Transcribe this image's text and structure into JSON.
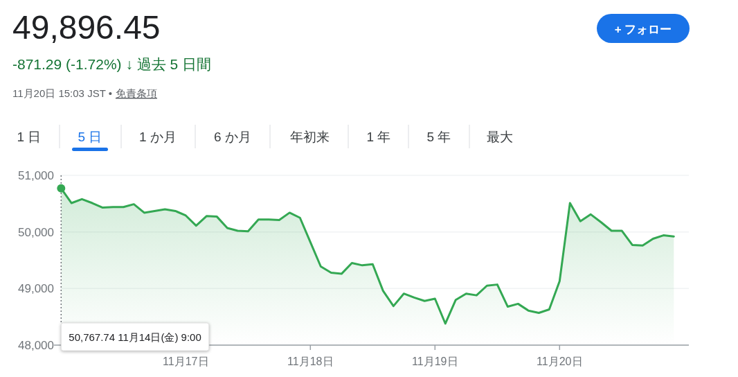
{
  "chart_data": {
    "type": "area",
    "title": "49,896.45",
    "subtitle": "-871.29 (-1.72%) ↓ 過去 5 日間",
    "annotations": [
      "11月20日 15:03 JST •",
      "免責条項",
      "1 日",
      "5 日",
      "1 か月",
      "6 か月",
      "年初来",
      "1 年",
      "5 年",
      "最大",
      "+ フォロー",
      "50,767.74  11月14日(金) 9:00"
    ],
    "categories": [
      null,
      null,
      null,
      null,
      null,
      null,
      null,
      null,
      null,
      null,
      null,
      null,
      "11月17日",
      null,
      null,
      null,
      null,
      null,
      null,
      null,
      null,
      null,
      null,
      null,
      "11月18日",
      null,
      null,
      null,
      null,
      null,
      null,
      null,
      null,
      null,
      null,
      null,
      "11月19日",
      null,
      null,
      null,
      null,
      null,
      null,
      null,
      null,
      null,
      null,
      null,
      "11月20日",
      null,
      null,
      null,
      null,
      null,
      null,
      null,
      null,
      null,
      null,
      null
    ],
    "values": [
      50770,
      50510,
      50580,
      50510,
      50430,
      50440,
      50440,
      50490,
      50340,
      50370,
      50400,
      50370,
      50290,
      50110,
      50280,
      50270,
      50070,
      50020,
      50010,
      50220,
      50220,
      50210,
      50340,
      50250,
      49820,
      49390,
      49280,
      49260,
      49450,
      49410,
      49430,
      48960,
      48690,
      48910,
      48840,
      48780,
      48820,
      48380,
      48800,
      48910,
      48880,
      49050,
      49070,
      48680,
      48730,
      48610,
      48570,
      48630,
      49130,
      50510,
      50190,
      50310,
      50170,
      50020,
      50020,
      49770,
      49760,
      49880,
      49940,
      49920
    ],
    "color": "#34a853",
    "ylim": [
      48000,
      51000
    ],
    "yticks": [
      {
        "value": 48000,
        "label": "48,000"
      },
      {
        "value": 49000,
        "label": "49,000"
      },
      {
        "value": 50000,
        "label": "50,000"
      },
      {
        "value": 51000,
        "label": "51,000"
      }
    ],
    "grid": "y",
    "marker": "none",
    "line_style": "solid"
  }
}
